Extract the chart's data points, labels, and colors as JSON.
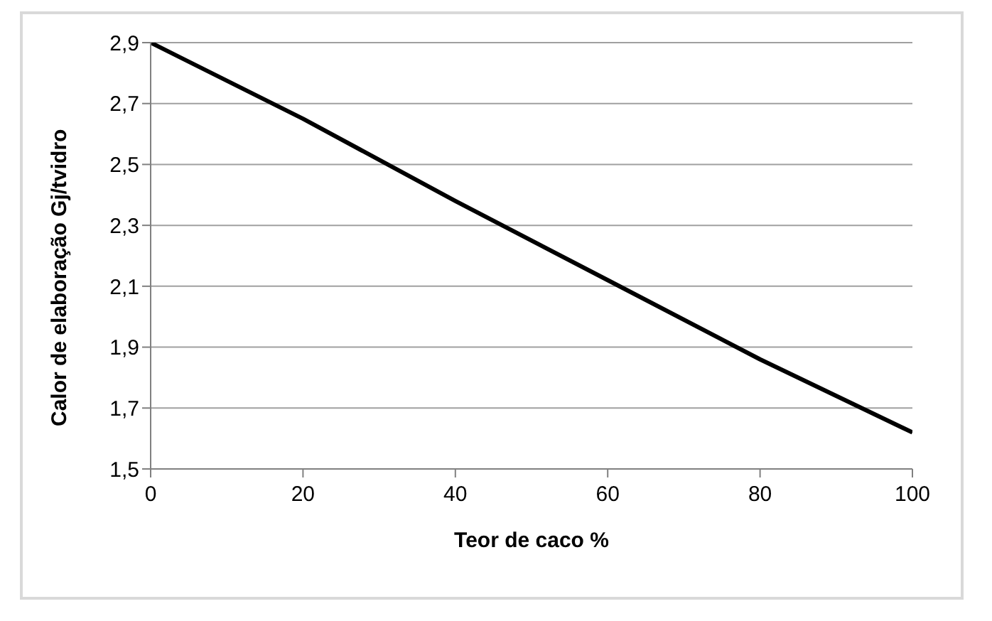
{
  "chart_data": {
    "type": "line",
    "xlabel": "Teor de caco %",
    "ylabel": "Calor de elaboração Gj/tvidro",
    "x": [
      0,
      20,
      40,
      60,
      80,
      100
    ],
    "series": [
      {
        "color": "#000000",
        "values": [
          2.9,
          2.65,
          2.38,
          2.12,
          1.86,
          1.62
        ]
      }
    ],
    "xlim": [
      0,
      100
    ],
    "xticks": [
      0,
      20,
      40,
      60,
      80,
      100
    ],
    "ylim": [
      1.5,
      2.9
    ],
    "yticks": [
      {
        "value": 1.5,
        "label": "1,5"
      },
      {
        "value": 1.7,
        "label": "1,7"
      },
      {
        "value": 1.9,
        "label": "1,9"
      },
      {
        "value": 2.1,
        "label": "2,1"
      },
      {
        "value": 2.3,
        "label": "2,3"
      },
      {
        "value": 2.5,
        "label": "2,5"
      },
      {
        "value": 2.7,
        "label": "2,7"
      },
      {
        "value": 2.9,
        "label": "2,9"
      }
    ],
    "grid": "y",
    "legend": false,
    "marker": "none",
    "line_style": "solid"
  }
}
